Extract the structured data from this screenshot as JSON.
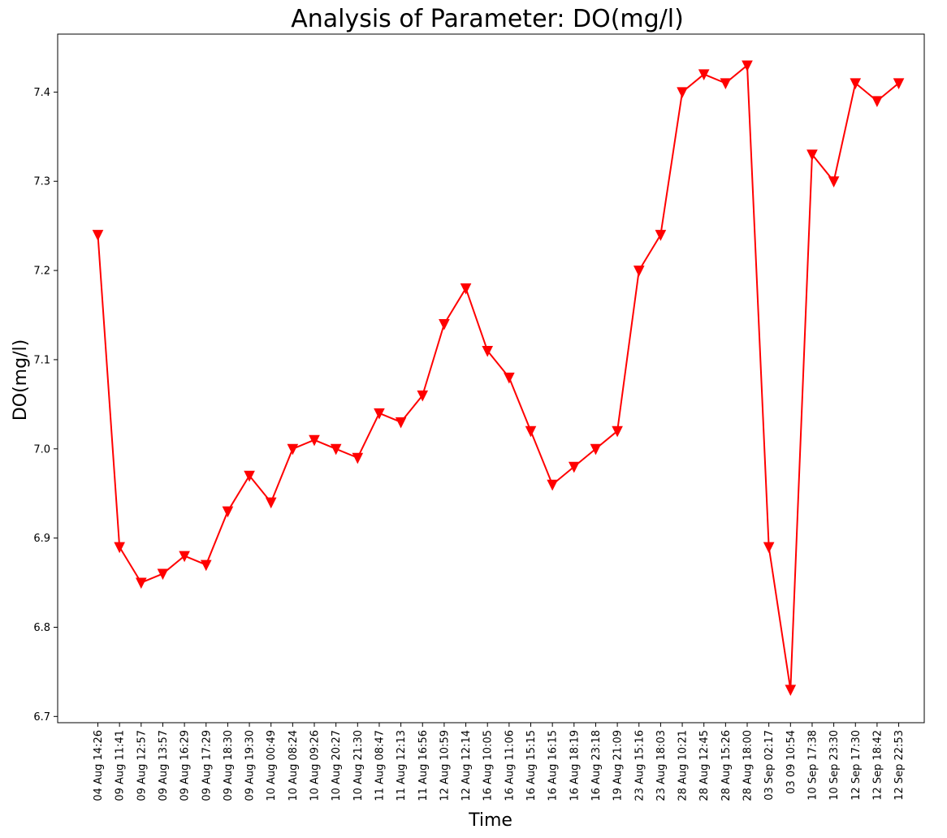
{
  "chart_data": {
    "type": "line",
    "title": "Analysis of Parameter: DO(mg/l)",
    "xlabel": "Time",
    "ylabel": "DO(mg/l)",
    "ylim": [
      6.693,
      7.465
    ],
    "yticks": [
      "6.7",
      "6.8",
      "6.9",
      "7.0",
      "7.1",
      "7.2",
      "7.3",
      "7.4"
    ],
    "grid": false,
    "line_color": "#ff0000",
    "marker": "triangle-down",
    "categories": [
      "04 Aug 14:26",
      "09 Aug 11:41",
      "09 Aug 12:57",
      "09 Aug 13:57",
      "09 Aug 16:29",
      "09 Aug 17:29",
      "09 Aug 18:30",
      "09 Aug 19:30",
      "10 Aug 00:49",
      "10 Aug 08:24",
      "10 Aug 09:26",
      "10 Aug 20:27",
      "10 Aug 21:30",
      "11 Aug 08:47",
      "11 Aug 12:13",
      "11 Aug 16:56",
      "12 Aug 10:59",
      "12 Aug 12:14",
      "16 Aug 10:05",
      "16 Aug 11:06",
      "16 Aug 15:15",
      "16 Aug 16:15",
      "16 Aug 18:19",
      "16 Aug 23:18",
      "19 Aug 21:09",
      "23 Aug 15:16",
      "23 Aug 18:03",
      "28 Aug 10:21",
      "28 Aug 12:45",
      "28 Aug 15:26",
      "28 Aug 18:00",
      "03 Sep 02:17",
      "03 09 10:54",
      "10 Sep 17:38",
      "10 Sep 23:30",
      "12 Sep 17:30",
      "12 Sep 18:42",
      "12 Sep 22:53"
    ],
    "series": [
      {
        "values": [
          7.24,
          6.89,
          6.85,
          6.86,
          6.88,
          6.87,
          6.93,
          6.97,
          6.94,
          7.0,
          7.01,
          7.0,
          6.99,
          7.04,
          7.03,
          7.06,
          7.14,
          7.18,
          7.11,
          7.08,
          7.02,
          6.96,
          6.98,
          7.0,
          7.02,
          7.2,
          7.24,
          7.4,
          7.42,
          7.41,
          7.43,
          6.89,
          6.73,
          7.33,
          7.3,
          7.41,
          7.39,
          7.41
        ]
      }
    ]
  }
}
